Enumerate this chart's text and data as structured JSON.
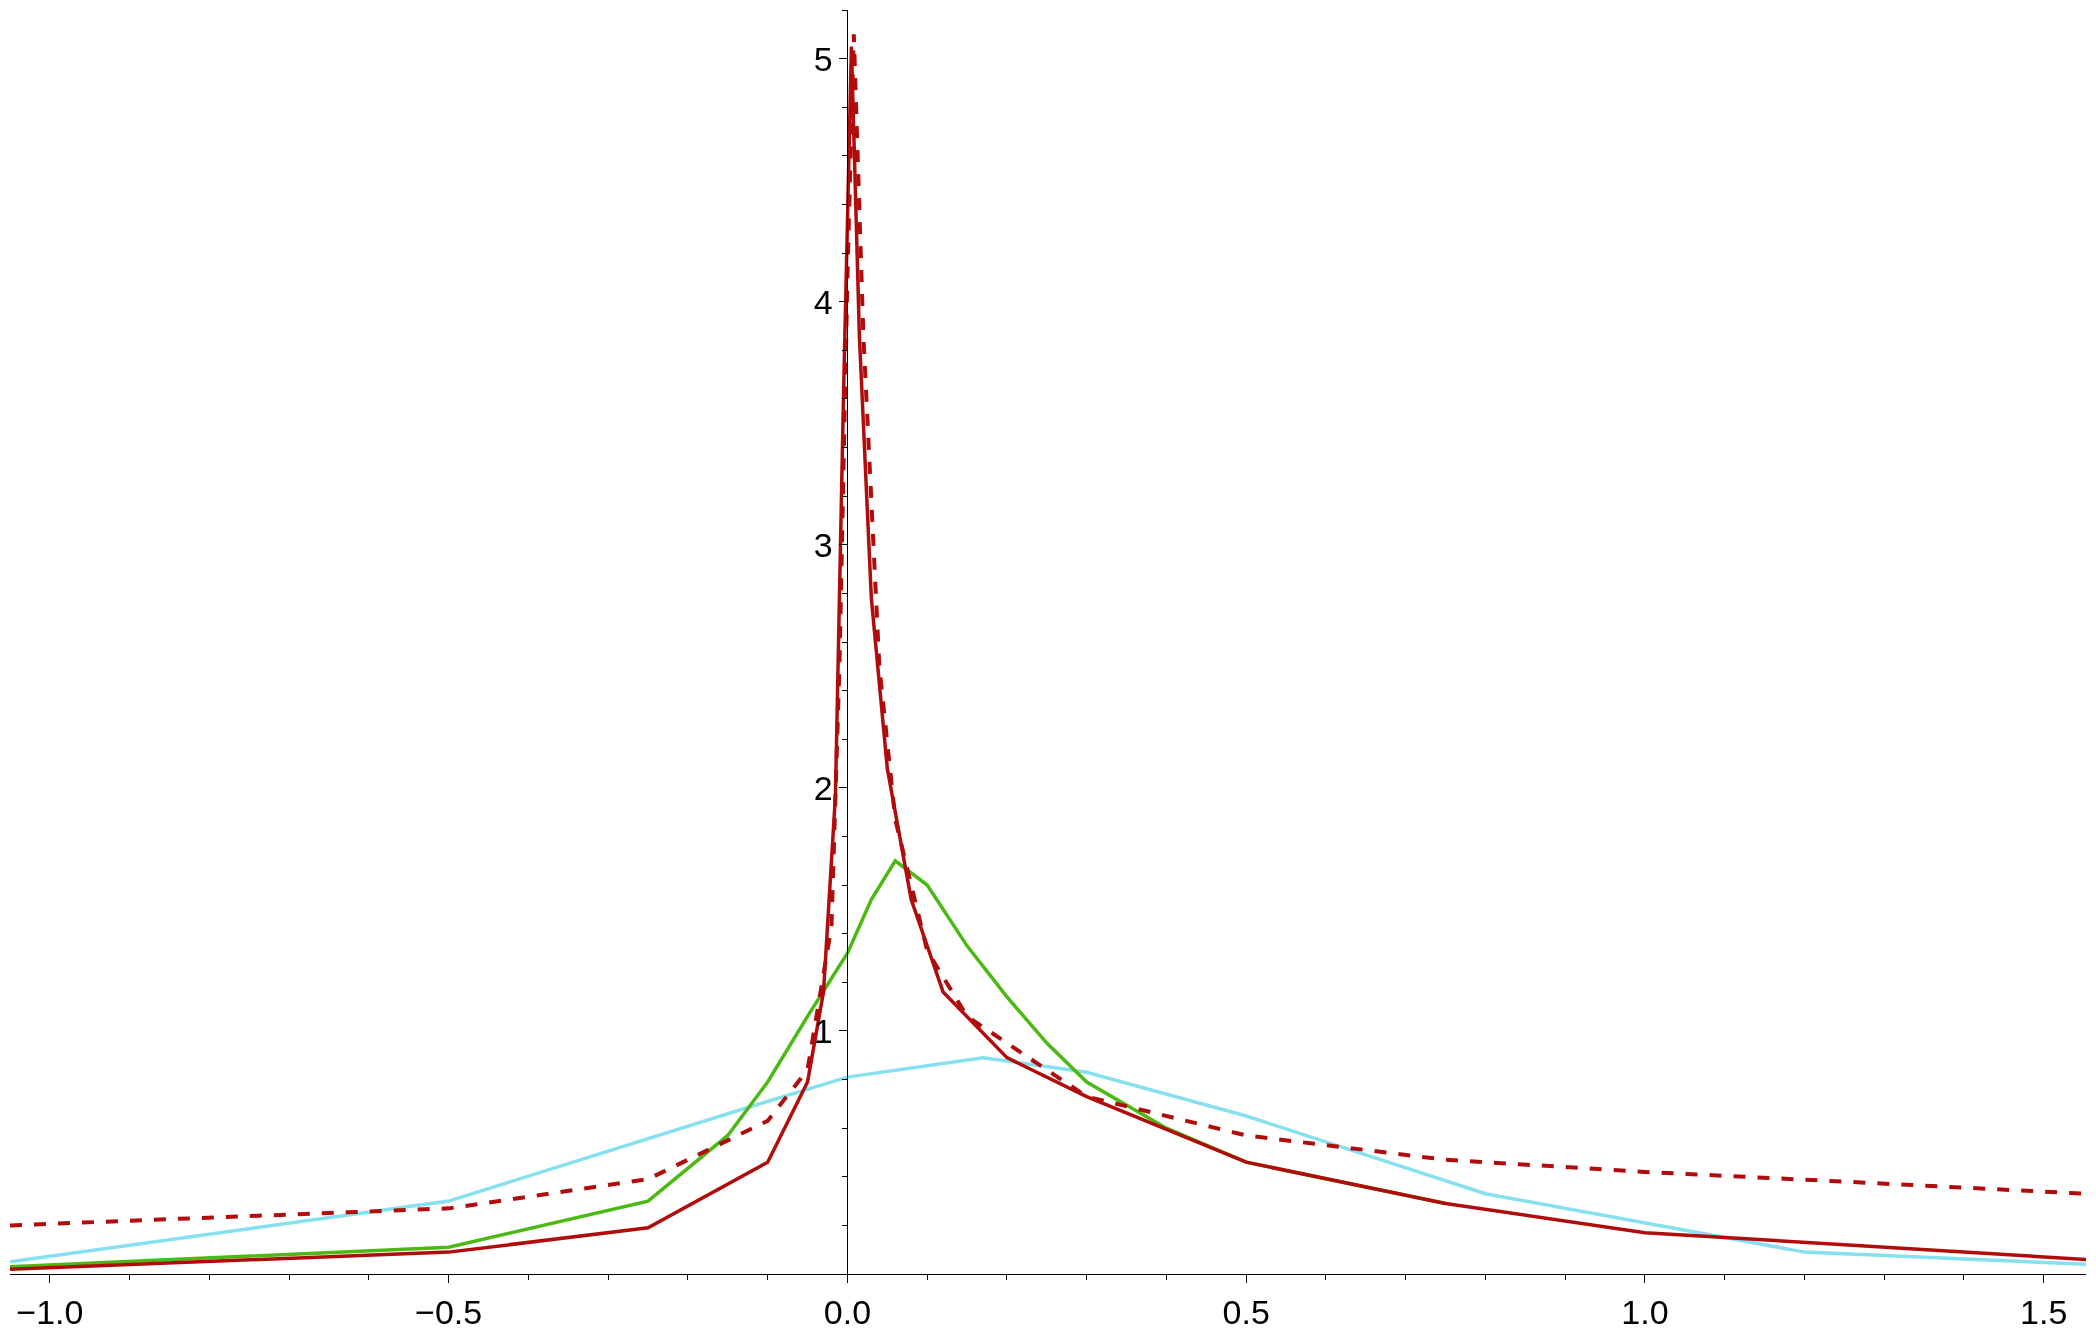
{
  "chart_data": {
    "type": "line",
    "xlim": [
      -1.05,
      1.553
    ],
    "ylim": [
      0,
      5.2
    ],
    "xticks": [
      {
        "value": -1,
        "label": "−1.0"
      },
      {
        "value": -0.5,
        "label": "−0.5"
      },
      {
        "value": 0,
        "label": "0.0"
      },
      {
        "value": 0.5,
        "label": "0.5"
      },
      {
        "value": 1,
        "label": "1.0"
      },
      {
        "value": 1.5,
        "label": "1.5"
      }
    ],
    "yticks": [
      1,
      2,
      3,
      4,
      5
    ],
    "marker": "none",
    "series": [
      {
        "color": "#87e0f0",
        "line_style": "solid",
        "x": [
          -1.05,
          -0.5,
          -0.12,
          0,
          0.17,
          0.3,
          0.5,
          0.65,
          0.8,
          1.2,
          1.553
        ],
        "values": [
          0.05,
          0.3,
          0.69,
          0.81,
          0.89,
          0.83,
          0.65,
          0.49,
          0.33,
          0.09,
          0.04
        ]
      },
      {
        "color": "#4cb814",
        "line_style": "solid",
        "x": [
          -1.05,
          -0.5,
          -0.25,
          -0.15,
          -0.1,
          -0.05,
          0,
          0.03,
          0.06,
          0.1,
          0.15,
          0.2,
          0.25,
          0.3,
          0.4,
          0.5,
          0.75
        ],
        "values": [
          0.03,
          0.11,
          0.3,
          0.57,
          0.79,
          1.06,
          1.32,
          1.54,
          1.7,
          1.6,
          1.35,
          1.14,
          0.95,
          0.79,
          0.6,
          0.46,
          0.29
        ]
      },
      {
        "color": "#b00c0c",
        "line_style": "solid",
        "x": [
          -1.05,
          -0.5,
          -0.25,
          -0.1,
          -0.05,
          -0.03,
          -0.015,
          -0.005,
          0.005,
          0.015,
          0.03,
          0.05,
          0.08,
          0.12,
          0.2,
          0.3,
          0.5,
          0.75,
          1.0,
          1.553
        ],
        "values": [
          0.02,
          0.09,
          0.19,
          0.46,
          0.79,
          1.16,
          1.97,
          3.6,
          5.05,
          3.86,
          2.78,
          2.08,
          1.54,
          1.16,
          0.89,
          0.73,
          0.46,
          0.29,
          0.17,
          0.06
        ]
      },
      {
        "color": "#b00c0c",
        "line_style": "dashed",
        "x": [
          -1.05,
          -0.5,
          -0.25,
          -0.1,
          -0.05,
          -0.02,
          -0.01,
          0,
          0.008,
          0.02,
          0.04,
          0.06,
          0.1,
          0.15,
          0.2,
          0.3,
          0.5,
          0.75,
          1.0,
          1.25,
          1.553
        ],
        "values": [
          0.2,
          0.27,
          0.39,
          0.63,
          0.84,
          1.43,
          2.5,
          4.1,
          5.1,
          3.86,
          2.5,
          1.87,
          1.33,
          1.06,
          0.95,
          0.73,
          0.57,
          0.47,
          0.42,
          0.38,
          0.33
        ]
      }
    ]
  }
}
